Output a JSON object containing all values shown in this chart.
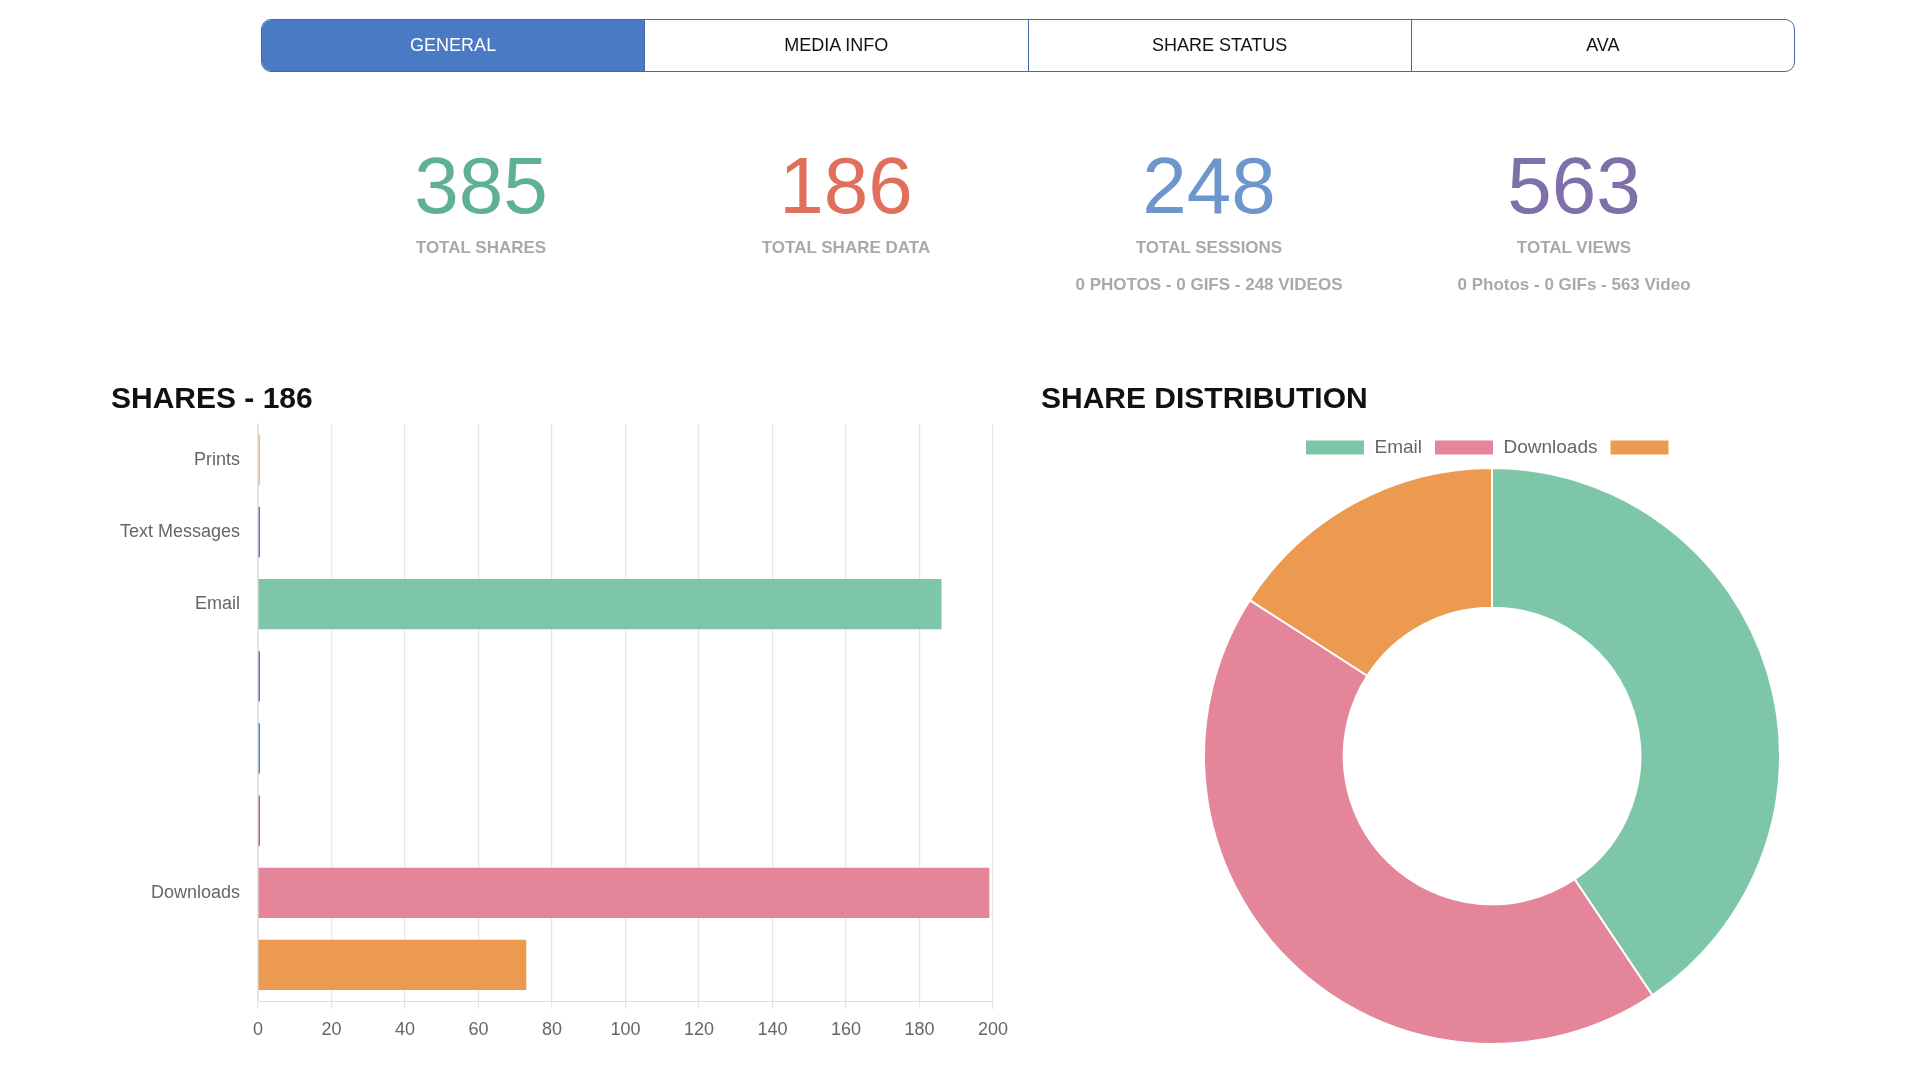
{
  "chart_data": [
    {
      "type": "other",
      "categories": [
        "GENERAL",
        "MEDIA INFO",
        "SHARE STATUS",
        "AVA"
      ]
    },
    {
      "type": "other",
      "categories": [
        "TOTAL SHARES"
      ],
      "values": [
        385
      ],
      "colors": [
        "#5fb094"
      ],
      "data_labels": true
    },
    {
      "type": "other",
      "categories": [
        "TOTAL SHARE DATA"
      ],
      "values": [
        186
      ],
      "colors": [
        "#e06f5b"
      ],
      "data_labels": true
    },
    {
      "type": "other",
      "categories": [
        "TOTAL SESSIONS"
      ],
      "values": [
        248
      ],
      "colors": [
        "#6d97cc"
      ],
      "data_labels": true,
      "annotations": [
        "0 PHOTOS - 0 GIFS - 248 VIDEOS"
      ]
    },
    {
      "type": "other",
      "categories": [
        "TOTAL VIEWS"
      ],
      "values": [
        563
      ],
      "colors": [
        "#7f70a9"
      ],
      "data_labels": true,
      "annotations": [
        "0 Photos - 0 GIFs - 563 Video"
      ]
    },
    {
      "type": "bar",
      "title": "SHARES - 186",
      "orientation": "horizontal",
      "categories": [
        "Prints",
        "Text Messages",
        "Email",
        null,
        null,
        null,
        "Downloads",
        null
      ],
      "values": [
        0,
        0,
        186,
        0,
        0,
        0,
        199,
        73
      ],
      "colors": [
        "#f0c36d",
        "#7c6bbd",
        "#7dc7a8",
        "#5e6fd3",
        "#4d87de",
        "#d9566b",
        "#e48599",
        "#ec9a50"
      ],
      "xlim": [
        0,
        200
      ],
      "xticks": [
        0,
        20,
        40,
        60,
        80,
        100,
        120,
        140,
        160,
        180,
        200
      ],
      "grid": "x"
    },
    {
      "type": "donut",
      "title": "SHARE DISTRIBUTION",
      "categories": [
        "Email",
        "Downloads",
        null
      ],
      "values": [
        40.6,
        43.5,
        15.9
      ],
      "colors": [
        "#7dc7a8",
        "#e48599",
        "#ec9a50"
      ],
      "legend": "top"
    }
  ]
}
